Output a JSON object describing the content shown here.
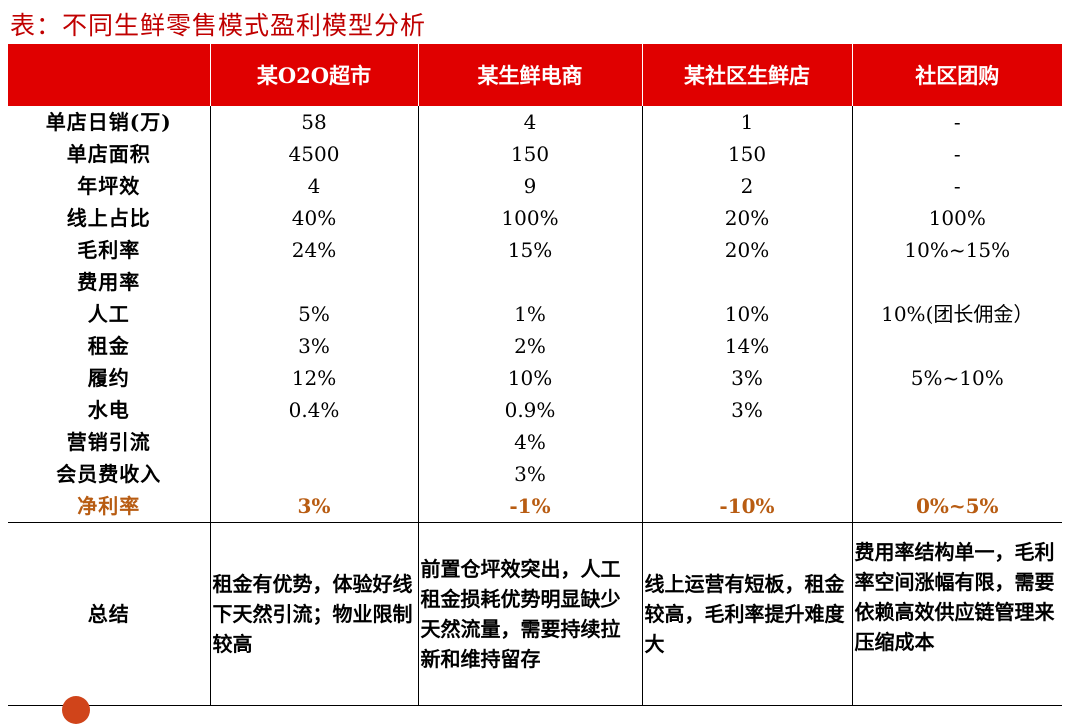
{
  "title": "表：不同生鲜零售模式盈利模型分析",
  "headers": [
    "",
    "某O2O超市",
    "某生鲜电商",
    "某社区生鲜店",
    "社区团购"
  ],
  "rows": [
    {
      "label": "单店日销(万)",
      "values": [
        "58",
        "4",
        "1",
        "-"
      ]
    },
    {
      "label": "单店面积",
      "values": [
        "4500",
        "150",
        "150",
        "-"
      ]
    },
    {
      "label": "年坪效",
      "values": [
        "4",
        "9",
        "2",
        "-"
      ]
    },
    {
      "label": "线上占比",
      "values": [
        "40%",
        "100%",
        "20%",
        "100%"
      ]
    },
    {
      "label": "毛利率",
      "values": [
        "24%",
        "15%",
        "20%",
        "10%~15%"
      ]
    },
    {
      "label": "费用率",
      "values": [
        "",
        "",
        "",
        ""
      ]
    },
    {
      "label": "人工",
      "values": [
        "5%",
        "1%",
        "10%",
        "10%(团长佣金）"
      ]
    },
    {
      "label": "租金",
      "values": [
        "3%",
        "2%",
        "14%",
        ""
      ]
    },
    {
      "label": "履约",
      "values": [
        "12%",
        "10%",
        "3%",
        "5%~10%"
      ]
    },
    {
      "label": "水电",
      "values": [
        "0.4%",
        "0.9%",
        "3%",
        ""
      ]
    },
    {
      "label": "营销引流",
      "values": [
        "",
        "4%",
        "",
        ""
      ]
    },
    {
      "label": "会员费收入",
      "values": [
        "",
        "3%",
        "",
        ""
      ]
    }
  ],
  "net": {
    "label": "净利率",
    "values": [
      "3%",
      "-1%",
      "-10%",
      "0%~5%"
    ]
  },
  "summary": {
    "label": "总结",
    "cells": [
      "租金有优势，体验好线下天然引流；物业限制较高",
      "前置仓坪效突出，人工租金损耗优势明显缺少天然流量，需要持续拉新和维持留存",
      "线上运营有短板，租金较高，毛利率提升难度大",
      "费用率结构单一，毛利率空间涨幅有限，需要依赖高效供应链管理来压缩成本"
    ]
  },
  "colors": {
    "header_bg": "#e00000",
    "title": "#c00000",
    "net_text": "#b85c12"
  }
}
